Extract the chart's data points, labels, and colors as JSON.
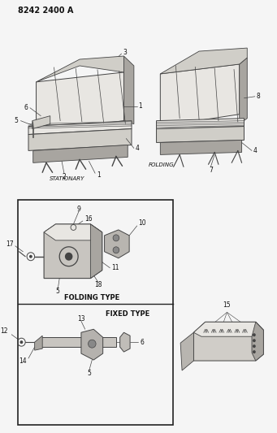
{
  "title": "8242 2400 A",
  "background_color": "#f5f5f5",
  "fig_width": 3.41,
  "fig_height": 5.33,
  "dpi": 100,
  "labels": {
    "stationary": "STATIONARY",
    "folding": "FOLDING",
    "folding_type": "FOLDING TYPE",
    "fixed_type": "FIXED TYPE"
  },
  "line_color": "#444444",
  "text_color": "#111111",
  "box_line_color": "#222222",
  "seat_face_color": "#d0cec8",
  "seat_dark_color": "#a8a5a0",
  "seat_light_color": "#e8e6e2"
}
